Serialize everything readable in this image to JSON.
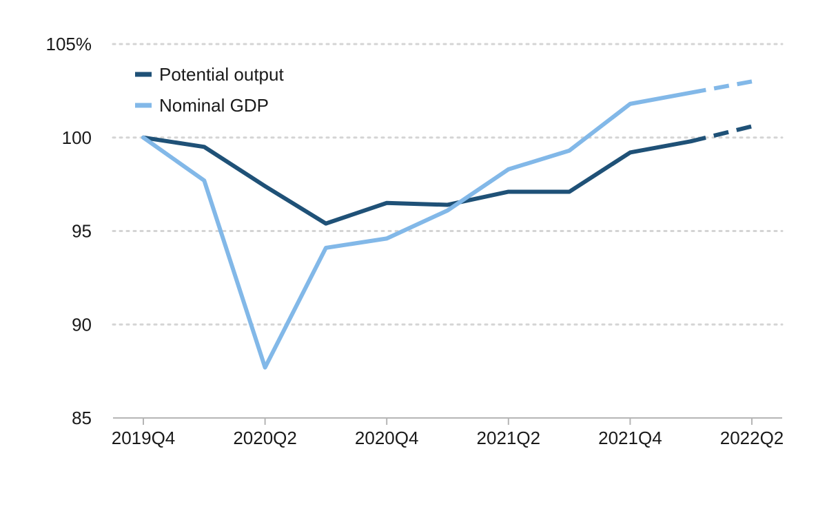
{
  "chart_data": {
    "type": "line",
    "title": "",
    "xlabel": "",
    "ylabel": "",
    "categories": [
      "2019Q4",
      "2020Q1",
      "2020Q2",
      "2020Q3",
      "2020Q4",
      "2021Q1",
      "2021Q2",
      "2021Q3",
      "2021Q4",
      "2022Q1",
      "2022Q2"
    ],
    "x_tick_labels": [
      "2019Q4",
      "2020Q2",
      "2020Q4",
      "2021Q2",
      "2021Q4",
      "2022Q2"
    ],
    "y_tick_labels": [
      "105%",
      "100",
      "95",
      "90",
      "85"
    ],
    "y_ticks": [
      105,
      100,
      95,
      90,
      85
    ],
    "ylim": [
      85,
      105
    ],
    "grid": "horizontal dotted",
    "legend_position": "top-left",
    "dashed_from_index": 9,
    "series": [
      {
        "name": "Potential output",
        "color": "#1f5177",
        "values": [
          100,
          99.5,
          97.4,
          95.4,
          96.5,
          96.4,
          97.1,
          97.1,
          99.2,
          99.8,
          100.6
        ]
      },
      {
        "name": "Nominal GDP",
        "color": "#82b8e8",
        "values": [
          100,
          97.7,
          87.7,
          94.1,
          94.6,
          96.1,
          98.3,
          99.3,
          101.8,
          102.4,
          103.0
        ]
      }
    ]
  }
}
